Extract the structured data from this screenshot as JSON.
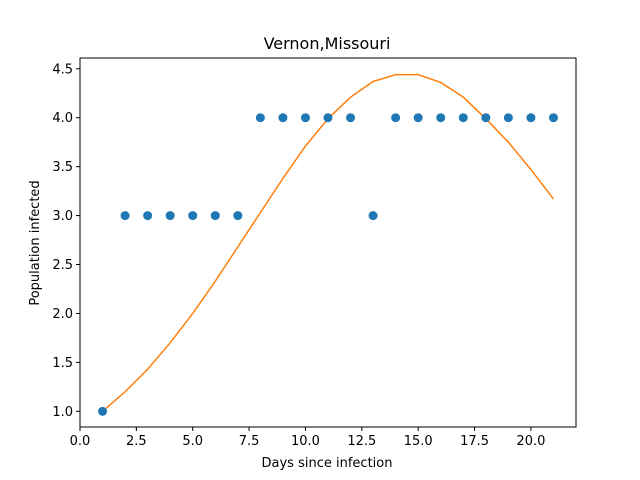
{
  "chart_data": {
    "type": "scatter",
    "title": "Vernon,Missouri",
    "xlabel": "Days since infection",
    "ylabel": "Population infected",
    "xlim": [
      0,
      22
    ],
    "ylim": [
      0.84,
      4.61
    ],
    "xticks": [
      0.0,
      2.5,
      5.0,
      7.5,
      10.0,
      12.5,
      15.0,
      17.5,
      20.0
    ],
    "xtick_labels": [
      "0.0",
      "2.5",
      "5.0",
      "7.5",
      "10.0",
      "12.5",
      "15.0",
      "17.5",
      "20.0"
    ],
    "yticks": [
      1.0,
      1.5,
      2.0,
      2.5,
      3.0,
      3.5,
      4.0,
      4.5
    ],
    "ytick_labels": [
      "1.0",
      "1.5",
      "2.0",
      "2.5",
      "3.0",
      "3.5",
      "4.0",
      "4.5"
    ],
    "grid": false,
    "series": [
      {
        "kind": "scatter",
        "color": "#1f77b4",
        "x": [
          1,
          2,
          3,
          4,
          5,
          6,
          7,
          8,
          9,
          10,
          11,
          12,
          13,
          14,
          15,
          16,
          17,
          18,
          19,
          20,
          21
        ],
        "y": [
          1,
          3,
          3,
          3,
          3,
          3,
          3,
          4,
          4,
          4,
          4,
          4,
          3,
          4,
          4,
          4,
          4,
          4,
          4,
          4,
          4
        ]
      },
      {
        "kind": "line",
        "color": "#ff7f0e",
        "x": [
          1,
          2,
          3,
          4,
          5,
          6,
          7,
          8,
          9,
          10,
          11,
          12,
          13,
          14,
          15,
          16,
          17,
          18,
          19,
          20,
          21
        ],
        "y": [
          1.0,
          1.2,
          1.43,
          1.7,
          2.0,
          2.33,
          2.68,
          3.03,
          3.38,
          3.71,
          3.99,
          4.21,
          4.37,
          4.44,
          4.44,
          4.36,
          4.21,
          3.99,
          3.75,
          3.47,
          3.17
        ]
      }
    ]
  }
}
